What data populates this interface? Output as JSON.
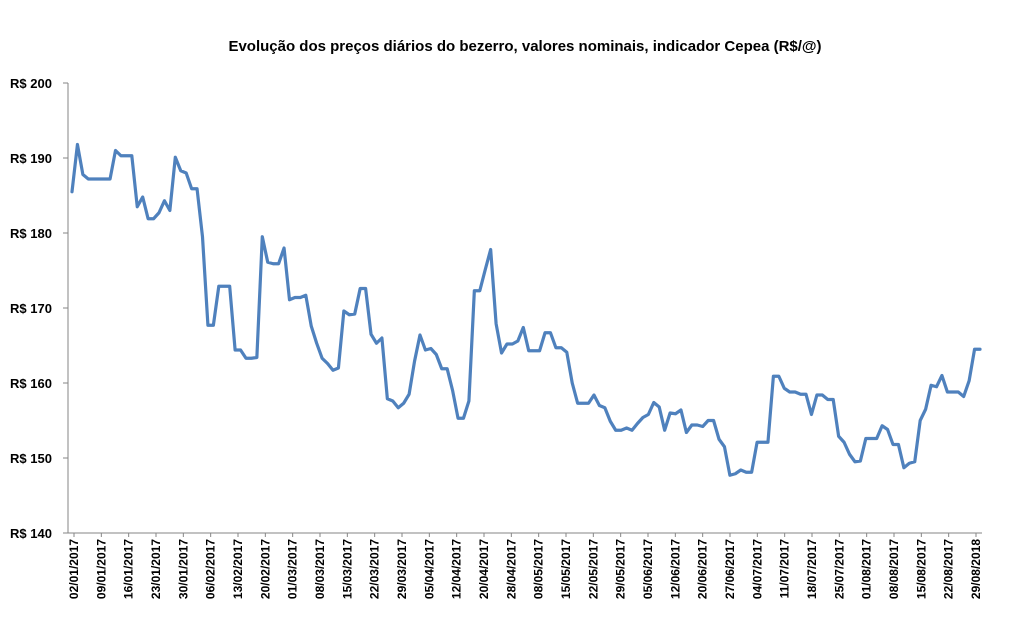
{
  "chart_data": {
    "type": "line",
    "title": "Evolução dos preços diários do bezerro, valores nominais, indicador Cepea (R$/@)",
    "xlabel": "",
    "ylabel": "",
    "ylim": [
      140,
      200
    ],
    "ytick_values": [
      140,
      150,
      160,
      170,
      180,
      190,
      200
    ],
    "ytick_labels": [
      "R$ 140",
      "R$ 150",
      "R$ 160",
      "R$ 170",
      "R$ 180",
      "R$ 190",
      "R$ 200"
    ],
    "x_tick_labels": [
      "02/01/2017",
      "09/01/2017",
      "16/01/2017",
      "23/01/2017",
      "30/01/2017",
      "06/02/2017",
      "13/02/2017",
      "20/02/2017",
      "01/03/2017",
      "08/03/2017",
      "15/03/2017",
      "22/03/2017",
      "29/03/2017",
      "05/04/2017",
      "12/04/2017",
      "20/04/2017",
      "28/04/2017",
      "08/05/2017",
      "15/05/2017",
      "22/05/2017",
      "29/05/2017",
      "05/06/2017",
      "12/06/2017",
      "20/06/2017",
      "27/06/2017",
      "04/07/2017",
      "11/07/2017",
      "18/07/2017",
      "25/07/2017",
      "01/08/2017",
      "08/08/2017",
      "15/08/2017",
      "22/08/2017",
      "29/08/2018"
    ],
    "grid": false,
    "line_color": "#4f81bd",
    "series": [
      {
        "values": [
          185.5,
          191.8,
          187.8,
          187.2,
          187.2,
          187.2,
          187.2,
          187.2,
          191.0,
          190.3,
          190.3,
          190.3,
          183.5,
          184.8,
          181.9,
          181.9,
          182.7,
          184.3,
          183.0,
          190.1,
          188.3,
          188.0,
          185.9,
          185.9,
          179.5,
          167.7,
          167.7,
          172.9,
          172.9,
          172.9,
          164.4,
          164.4,
          163.3,
          163.3,
          163.4,
          179.5,
          176.1,
          175.9,
          175.9,
          178.0,
          171.1,
          171.4,
          171.4,
          171.7,
          167.6,
          165.3,
          163.3,
          162.6,
          161.7,
          162.0,
          169.6,
          169.1,
          169.2,
          172.6,
          172.6,
          166.5,
          165.3,
          166.0,
          157.9,
          157.6,
          156.7,
          157.3,
          158.5,
          162.9,
          166.4,
          164.4,
          164.6,
          163.8,
          161.9,
          161.9,
          159.0,
          155.3,
          155.3,
          157.6,
          172.3,
          172.3,
          175.1,
          177.8,
          167.9,
          164.0,
          165.2,
          165.2,
          165.6,
          167.4,
          164.3,
          164.3,
          164.3,
          166.7,
          166.7,
          164.7,
          164.7,
          164.1,
          160.0,
          157.3,
          157.3,
          157.3,
          158.4,
          157.0,
          156.7,
          154.9,
          153.7,
          153.7,
          154.0,
          153.7,
          154.6,
          155.4,
          155.8,
          157.4,
          156.8,
          153.7,
          156.0,
          155.9,
          156.4,
          153.4,
          154.4,
          154.4,
          154.2,
          155.0,
          155.0,
          152.5,
          151.5,
          147.7,
          147.9,
          148.4,
          148.1,
          148.1,
          152.1,
          152.1,
          152.1,
          160.9,
          160.9,
          159.3,
          158.8,
          158.8,
          158.5,
          158.5,
          155.8,
          158.4,
          158.4,
          157.8,
          157.8,
          152.9,
          152.1,
          150.5,
          149.5,
          149.6,
          152.6,
          152.6,
          152.6,
          154.3,
          153.8,
          151.8,
          151.8,
          148.7,
          149.3,
          149.5,
          155.0,
          156.5,
          159.7,
          159.5,
          161.0,
          158.8,
          158.8,
          158.8,
          158.2,
          160.3,
          164.5,
          164.5
        ]
      }
    ]
  }
}
